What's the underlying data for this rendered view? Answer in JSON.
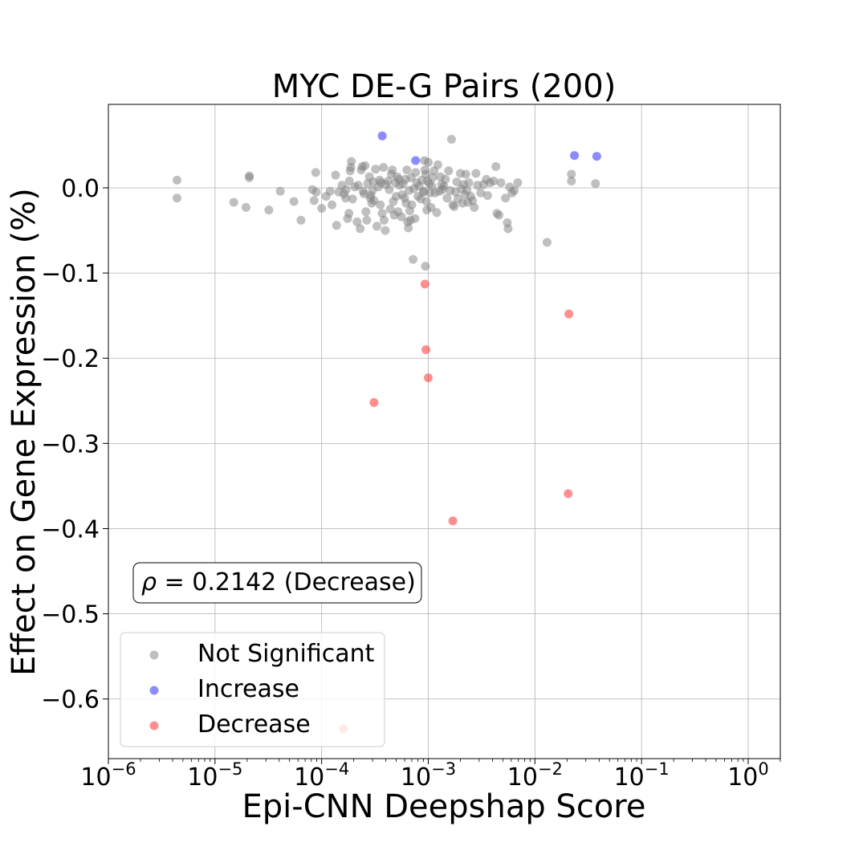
{
  "chart_data": {
    "type": "scatter",
    "title": "MYC DE-G Pairs (200)",
    "xlabel": "Epi-CNN Deepshap Score",
    "ylabel": "Effect on Gene Expression (%)",
    "x_scale": "log",
    "xlim": [
      1e-06,
      2.0
    ],
    "ylim": [
      -0.67,
      0.098
    ],
    "x_ticks": [
      1e-06,
      1e-05,
      0.0001,
      0.001,
      0.01,
      0.1,
      1
    ],
    "x_tick_labels": [
      {
        "base": "10",
        "exp": "−6"
      },
      {
        "base": "10",
        "exp": "−5"
      },
      {
        "base": "10",
        "exp": "−4"
      },
      {
        "base": "10",
        "exp": "−3"
      },
      {
        "base": "10",
        "exp": "−2"
      },
      {
        "base": "10",
        "exp": "−1"
      },
      {
        "base": "10",
        "exp": "0"
      }
    ],
    "y_ticks": [
      0.0,
      -0.1,
      -0.2,
      -0.3,
      -0.4,
      -0.5,
      -0.6
    ],
    "y_tick_labels": [
      "0.0",
      "−0.1",
      "−0.2",
      "−0.3",
      "−0.4",
      "−0.5",
      "−0.6"
    ],
    "grid": true,
    "legend_position": "lower-left",
    "annotation": {
      "symbol": "ρ",
      "text": " = 0.2142 (Decrease)"
    },
    "series": [
      {
        "name": "Not Significant",
        "color": "#808080",
        "points": [
          [
            4.4e-06,
            0.009
          ],
          [
            4.4e-06,
            -0.012
          ],
          [
            1.5e-05,
            -0.017
          ],
          [
            1.95e-05,
            -0.023
          ],
          [
            2.1e-05,
            0.014
          ],
          [
            2.1e-05,
            0.012
          ],
          [
            3.2e-05,
            -0.026
          ],
          [
            4.1e-05,
            -0.004
          ],
          [
            5.5e-05,
            -0.016
          ],
          [
            6.4e-05,
            -0.038
          ],
          [
            8.2e-05,
            -0.002
          ],
          [
            8.5e-05,
            -0.015
          ],
          [
            8.8e-05,
            0.018
          ],
          [
            8.9e-05,
            -0.005
          ],
          [
            0.0001,
            -0.024
          ],
          [
            0.00011,
            -0.01
          ],
          [
            0.00012,
            -0.004
          ],
          [
            0.000125,
            -0.02
          ],
          [
            0.000135,
            0.015
          ],
          [
            0.000138,
            -0.044
          ],
          [
            0.000145,
            -0.005
          ],
          [
            0.000155,
            0.003
          ],
          [
            0.000162,
            -0.007
          ],
          [
            0.000168,
            -0.012
          ],
          [
            0.00017,
            -0.002
          ],
          [
            0.000175,
            -0.036
          ],
          [
            0.00018,
            -0.03
          ],
          [
            0.000182,
            0.008
          ],
          [
            0.000185,
            0.02
          ],
          [
            0.000188,
            0.024
          ],
          [
            0.00019,
            0.031
          ],
          [
            0.000195,
            -0.013
          ],
          [
            0.000205,
            0.001
          ],
          [
            0.000215,
            -0.04
          ],
          [
            0.00022,
            0.003
          ],
          [
            0.00023,
            -0.048
          ],
          [
            0.000235,
            0.021
          ],
          [
            0.00024,
            0.025
          ],
          [
            0.000245,
            -0.004
          ],
          [
            0.00025,
            -0.007
          ],
          [
            0.000255,
            0.026
          ],
          [
            0.00026,
            -0.028
          ],
          [
            0.000265,
            -0.038
          ],
          [
            0.00027,
            0.005
          ],
          [
            0.00028,
            0.013
          ],
          [
            0.000285,
            -0.012
          ],
          [
            0.00029,
            -0.009
          ],
          [
            0.000295,
            -0.018
          ],
          [
            0.0003,
            -0.003
          ],
          [
            0.000305,
            0.007
          ],
          [
            0.00031,
            -0.015
          ],
          [
            0.00032,
            0.022
          ],
          [
            0.00033,
            -0.045
          ],
          [
            0.00034,
            0.001
          ],
          [
            0.00035,
            0.009
          ],
          [
            0.000355,
            -0.02
          ],
          [
            0.00036,
            0.006
          ],
          [
            0.00037,
            -0.03
          ],
          [
            0.00038,
            0.024
          ],
          [
            0.000385,
            -0.038
          ],
          [
            0.000395,
            -0.05
          ],
          [
            0.0004,
            0.004
          ],
          [
            0.00042,
            0.008
          ],
          [
            0.00043,
            -0.002
          ],
          [
            0.00044,
            -0.025
          ],
          [
            0.00045,
            0.016
          ],
          [
            0.00046,
            0.021
          ],
          [
            0.00047,
            -0.016
          ],
          [
            0.00048,
            -0.032
          ],
          [
            0.00049,
            0.006
          ],
          [
            0.0005,
            -0.01
          ],
          [
            0.00051,
            0.013
          ],
          [
            0.00052,
            -0.028
          ],
          [
            0.00053,
            0.01
          ],
          [
            0.00054,
            0.003
          ],
          [
            0.00056,
            -0.034
          ],
          [
            0.00057,
            -0.008
          ],
          [
            0.00058,
            0.005
          ],
          [
            0.0006,
            -0.012
          ],
          [
            0.00061,
            0.01
          ],
          [
            0.00062,
            -0.018
          ],
          [
            0.00063,
            0.021
          ],
          [
            0.00064,
            -0.04
          ],
          [
            0.00065,
            -0.047
          ],
          [
            0.00066,
            -0.003
          ],
          [
            0.00067,
            -0.027
          ],
          [
            0.00068,
            -0.038
          ],
          [
            0.00069,
            0.012
          ],
          [
            0.0007,
            -0.02
          ],
          [
            0.00072,
            -0.084
          ],
          [
            0.00073,
            -0.001
          ],
          [
            0.00075,
            -0.036
          ],
          [
            0.00076,
            0.018
          ],
          [
            0.00078,
            0.006
          ],
          [
            0.0008,
            -0.01
          ],
          [
            0.00082,
            0.002
          ],
          [
            0.00085,
            -0.013
          ],
          [
            0.00087,
            0.009
          ],
          [
            0.0009,
            -0.005
          ],
          [
            0.00091,
            -0.004
          ],
          [
            0.00092,
            0.032
          ],
          [
            0.00093,
            0.021
          ],
          [
            0.00094,
            -0.092
          ],
          [
            0.00095,
            0.016
          ],
          [
            0.00096,
            -0.016
          ],
          [
            0.00097,
            -0.026
          ],
          [
            0.00098,
            0.008
          ],
          [
            0.001,
            0.03
          ],
          [
            0.00102,
            0.005
          ],
          [
            0.00104,
            -0.006
          ],
          [
            0.00106,
            -0.023
          ],
          [
            0.00108,
            0.002
          ],
          [
            0.0011,
            0.012
          ],
          [
            0.00113,
            0.02
          ],
          [
            0.00116,
            -0.006
          ],
          [
            0.0012,
            -0.029
          ],
          [
            0.00123,
            0.027
          ],
          [
            0.00127,
            -0.004
          ],
          [
            0.0013,
            0.013
          ],
          [
            0.00133,
            0.004
          ],
          [
            0.00136,
            -0.002
          ],
          [
            0.0014,
            0.002
          ],
          [
            0.00145,
            0.01
          ],
          [
            0.0015,
            -0.012
          ],
          [
            0.00155,
            0.02
          ],
          [
            0.0016,
            -0.003
          ],
          [
            0.00165,
            0.057
          ],
          [
            0.0017,
            -0.02
          ],
          [
            0.00175,
            -0.022
          ],
          [
            0.0018,
            -0.005
          ],
          [
            0.00185,
            0.007
          ],
          [
            0.0019,
            -0.013
          ],
          [
            0.002,
            0.017
          ],
          [
            0.00205,
            -0.001
          ],
          [
            0.0021,
            -0.018
          ],
          [
            0.00215,
            0.004
          ],
          [
            0.0022,
            -0.008
          ],
          [
            0.00225,
            0.016
          ],
          [
            0.0023,
            -0.003
          ],
          [
            0.00235,
            -0.017
          ],
          [
            0.0024,
            0.006
          ],
          [
            0.0025,
            -0.01
          ],
          [
            0.0026,
            -0.015
          ],
          [
            0.0027,
            -0.023
          ],
          [
            0.0028,
            0.017
          ],
          [
            0.0029,
            0.003
          ],
          [
            0.0031,
            -0.006
          ],
          [
            0.0033,
            0.004
          ],
          [
            0.0035,
            0.01
          ],
          [
            0.0036,
            -0.009
          ],
          [
            0.0038,
            0.006
          ],
          [
            0.0041,
            0.008
          ],
          [
            0.0043,
            0.025
          ],
          [
            0.0044,
            -0.03
          ],
          [
            0.0046,
            -0.032
          ],
          [
            0.0048,
            0.006
          ],
          [
            0.0053,
            -0.012
          ],
          [
            0.0055,
            -0.041
          ],
          [
            0.0056,
            -0.048
          ],
          [
            0.0058,
            0.001
          ],
          [
            0.0061,
            -0.006
          ],
          [
            0.0064,
            -0.003
          ],
          [
            0.0069,
            0.006
          ],
          [
            0.013,
            -0.064
          ],
          [
            0.022,
            0.016
          ],
          [
            0.022,
            0.008
          ],
          [
            0.037,
            0.005
          ]
        ]
      },
      {
        "name": "Increase",
        "color": "#1a1aff",
        "points": [
          [
            0.00037,
            0.061
          ],
          [
            0.00076,
            0.032
          ],
          [
            0.0235,
            0.038
          ],
          [
            0.038,
            0.037
          ]
        ]
      },
      {
        "name": "Decrease",
        "color": "#ff2020",
        "points": [
          [
            0.00093,
            -0.113
          ],
          [
            0.0208,
            -0.148
          ],
          [
            0.00095,
            -0.19
          ],
          [
            0.001,
            -0.223
          ],
          [
            0.00031,
            -0.252
          ],
          [
            0.0205,
            -0.359
          ],
          [
            0.0017,
            -0.391
          ],
          [
            0.00016,
            -0.635
          ]
        ]
      }
    ]
  }
}
